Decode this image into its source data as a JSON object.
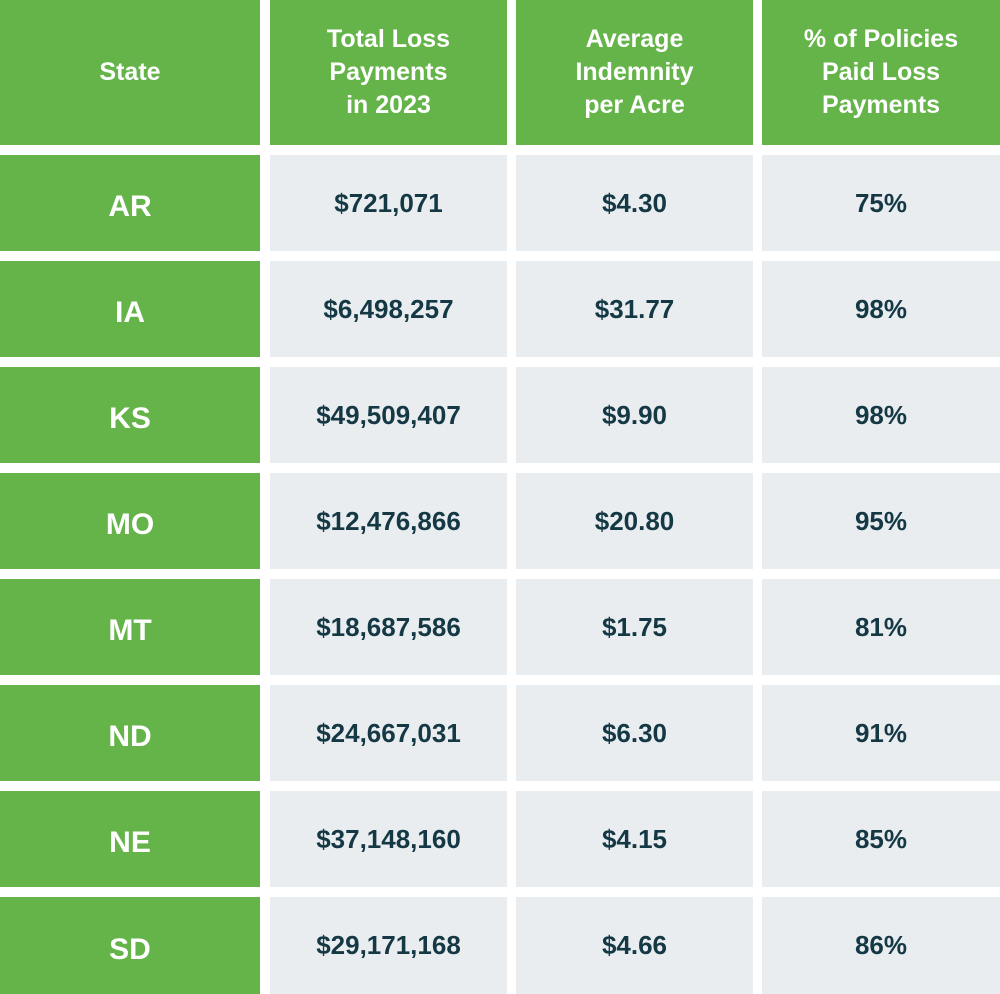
{
  "table": {
    "headers": [
      "State",
      "Total Loss\nPayments\nin 2023",
      "Average\nIndemnity\nper Acre",
      "% of Policies\nPaid Loss\nPayments"
    ],
    "rows": [
      {
        "state": "AR",
        "total": "$721,071",
        "avg": "$4.30",
        "pct": "75%"
      },
      {
        "state": "IA",
        "total": "$6,498,257",
        "avg": "$31.77",
        "pct": "98%"
      },
      {
        "state": "KS",
        "total": "$49,509,407",
        "avg": "$9.90",
        "pct": "98%"
      },
      {
        "state": "MO",
        "total": "$12,476,866",
        "avg": "$20.80",
        "pct": "95%"
      },
      {
        "state": "MT",
        "total": "$18,687,586",
        "avg": "$1.75",
        "pct": "81%"
      },
      {
        "state": "ND",
        "total": "$24,667,031",
        "avg": "$6.30",
        "pct": "91%"
      },
      {
        "state": "NE",
        "total": "$37,148,160",
        "avg": "$4.15",
        "pct": "85%"
      },
      {
        "state": "SD",
        "total": "$29,171,168",
        "avg": "$4.66",
        "pct": "86%"
      }
    ]
  },
  "colors": {
    "green": "#65b44a",
    "cell_bg": "#e9edf0",
    "text_dark": "#153845",
    "text_light": "#ffffff"
  }
}
